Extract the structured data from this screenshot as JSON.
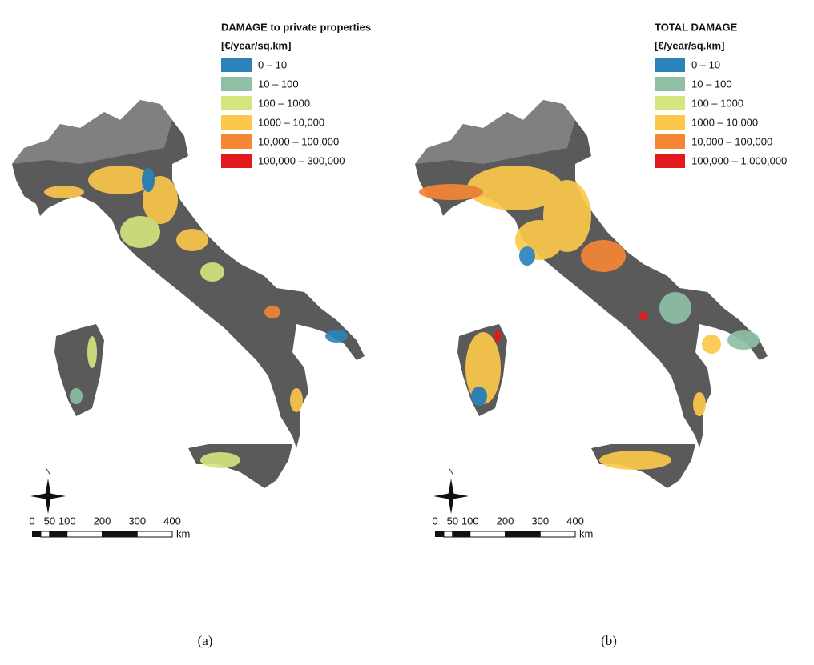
{
  "panels": [
    {
      "caption": "(a)",
      "legend": {
        "title": "DAMAGE to private properties",
        "unit": "[€/year/sq.km]",
        "classes": [
          {
            "label": "0 – 10",
            "color": "#2b83ba"
          },
          {
            "label": "10 – 100",
            "color": "#8fbfa5"
          },
          {
            "label": "100 – 1000",
            "color": "#d4e67f"
          },
          {
            "label": "1000 – 10,000",
            "color": "#fcc84b"
          },
          {
            "label": "10,000 – 100,000",
            "color": "#f58634"
          },
          {
            "label": "100,000 – 300,000",
            "color": "#e31a1c"
          }
        ]
      },
      "north": "N",
      "scale_bar": {
        "ticks": [
          0,
          50,
          100,
          200,
          300,
          400
        ],
        "unit": "km"
      }
    },
    {
      "caption": "(b)",
      "legend": {
        "title": "TOTAL DAMAGE",
        "unit": "[€/year/sq.km]",
        "classes": [
          {
            "label": "0 – 10",
            "color": "#2b83ba"
          },
          {
            "label": "10 – 100",
            "color": "#8fbfa5"
          },
          {
            "label": "100 – 1000",
            "color": "#d4e67f"
          },
          {
            "label": "1000 – 10,000",
            "color": "#fcc84b"
          },
          {
            "label": "10,000 – 100,000",
            "color": "#f58634"
          },
          {
            "label": "100,000 – 1,000,000",
            "color": "#e31a1c"
          }
        ]
      },
      "north": "N",
      "scale_bar": {
        "ticks": [
          0,
          50,
          100,
          200,
          300,
          400
        ],
        "unit": "km"
      }
    }
  ]
}
